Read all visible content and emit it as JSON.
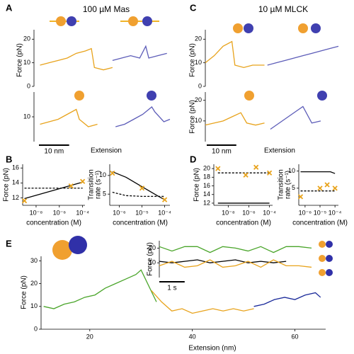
{
  "chart_data": [
    {
      "type": "line",
      "panel_label": "A",
      "title": "100 µM Mas",
      "ylabel": "Force (pN)",
      "xlim": [
        0,
        45
      ],
      "ylim": [
        0,
        24
      ],
      "yticks": [
        0,
        10,
        20
      ],
      "series": [
        {
          "color": "#e8a31c",
          "style": "solid",
          "x": [
            2,
            5,
            8,
            11,
            14,
            17,
            19,
            20,
            23,
            26
          ],
          "values": [
            9,
            10,
            11,
            12,
            14,
            15,
            16,
            8,
            7,
            8
          ]
        },
        {
          "color": "#5c5cb8",
          "style": "solid",
          "x": [
            26,
            29,
            32,
            35,
            37,
            38,
            41,
            44
          ],
          "values": [
            11,
            12,
            13,
            12,
            17,
            12,
            13,
            14
          ]
        }
      ]
    },
    {
      "type": "line",
      "xlabel": "Extension",
      "scalebar": {
        "value": 10,
        "label": "10 nm"
      },
      "xlim": [
        0,
        45
      ],
      "ylim": [
        0,
        20
      ],
      "yticks": [
        10
      ],
      "series": [
        {
          "color": "#e8a31c",
          "style": "solid",
          "x": [
            2,
            5,
            8,
            11,
            14,
            15,
            18,
            21
          ],
          "values": [
            7,
            8,
            9,
            11,
            13,
            9,
            6,
            7
          ]
        },
        {
          "color": "#5c5cb8",
          "style": "solid",
          "x": [
            27,
            30,
            33,
            36,
            39,
            40,
            43,
            45
          ],
          "values": [
            6,
            7,
            9,
            11,
            14,
            12,
            8,
            9
          ]
        }
      ]
    },
    {
      "type": "line",
      "panel_label": "C",
      "title": "10 µM MLCK",
      "ylabel": "Force (pN)",
      "xlim": [
        0,
        45
      ],
      "ylim": [
        0,
        24
      ],
      "yticks": [
        0,
        10,
        20
      ],
      "series": [
        {
          "color": "#e8a31c",
          "style": "solid",
          "x": [
            0,
            3,
            6,
            9,
            10,
            13,
            16,
            20
          ],
          "values": [
            10,
            13,
            17,
            19,
            9,
            8,
            9,
            9
          ]
        },
        {
          "color": "#5c5cb8",
          "style": "solid",
          "x": [
            21,
            24,
            27,
            30,
            33,
            36,
            39,
            42,
            45
          ],
          "values": [
            9,
            10,
            11,
            12,
            13,
            14,
            15,
            16,
            17
          ]
        }
      ]
    },
    {
      "type": "line",
      "ylabel": "Force (pN)",
      "xlabel": "Extension",
      "scalebar": {
        "value": 10,
        "label": "10 nm"
      },
      "xlim": [
        0,
        45
      ],
      "ylim": [
        0,
        24
      ],
      "yticks": [
        10,
        20
      ],
      "series": [
        {
          "color": "#e8a31c",
          "style": "solid",
          "x": [
            0,
            3,
            6,
            9,
            12,
            14,
            17,
            20
          ],
          "values": [
            8,
            9,
            10,
            12,
            14,
            9,
            8,
            9
          ]
        },
        {
          "color": "#5c5cb8",
          "style": "solid",
          "x": [
            22,
            25,
            28,
            31,
            33,
            36,
            39
          ],
          "values": [
            6,
            9,
            12,
            15,
            17,
            9,
            10
          ]
        }
      ]
    },
    {
      "type": "scatter",
      "panel_label": "B",
      "ylabel": "Force (pN)",
      "xlabel": "concentration (M)",
      "xscale": "log",
      "xlim": [
        7e-10,
        0.00016
      ],
      "xticks": [
        {
          "value": 1e-08,
          "label": "10⁻⁸"
        },
        {
          "value": 1e-06,
          "label": "10⁻⁶"
        },
        {
          "value": 0.0001,
          "label": "10⁻⁴"
        }
      ],
      "ylim": [
        11,
        16.5
      ],
      "yticks": [
        12,
        14,
        16
      ],
      "series": [
        {
          "color": "#000000",
          "style": "solid",
          "x": [
            1e-09,
            0.0001
          ],
          "values": [
            11.9,
            14.1
          ]
        },
        {
          "color": "#000000",
          "style": "dashed",
          "x": [
            1e-09,
            0.0001
          ],
          "values": [
            13.3,
            13.3
          ]
        },
        {
          "color": "#e8a31c",
          "style": "cross",
          "x": [
            1e-09,
            1e-05,
            0.0001
          ],
          "values": [
            11.6,
            13.6,
            14.2
          ]
        }
      ]
    },
    {
      "type": "scatter",
      "ylabel": [
        "Transition",
        "rate (s⁻¹)"
      ],
      "xlabel": "concentration (M)",
      "xscale": "log",
      "xlim": [
        3.8e-07,
        0.00017
      ],
      "xticks": [
        {
          "value": 1e-06,
          "label": "10⁻⁶"
        },
        {
          "value": 1e-05,
          "label": "10⁻⁵"
        },
        {
          "value": 0.0001,
          "label": "10⁻⁴"
        }
      ],
      "ylim": [
        2,
        13
      ],
      "yticks": [
        5,
        10
      ],
      "series": [
        {
          "color": "#000000",
          "style": "solid",
          "x": [
            5e-07,
            2e-06,
            1e-05,
            5e-05,
            0.0001
          ],
          "values": [
            11,
            9.5,
            7,
            4.5,
            3.5
          ]
        },
        {
          "color": "#000000",
          "style": "dashed",
          "x": [
            5e-07,
            2e-06,
            1e-05,
            0.0001
          ],
          "values": [
            5.5,
            4.6,
            4.4,
            4.4
          ]
        },
        {
          "color": "#e8a31c",
          "style": "cross",
          "x": [
            5e-07,
            1e-05,
            0.0001
          ],
          "values": [
            10.6,
            6.6,
            3.5
          ]
        }
      ]
    },
    {
      "type": "scatter",
      "panel_label": "D",
      "ylabel": "Force (pN)",
      "xlabel": "concentration (M)",
      "xscale": "log",
      "xlim": [
        4e-10,
        0.0002
      ],
      "xticks": [
        {
          "value": 1e-08,
          "label": "10⁻⁸"
        },
        {
          "value": 1e-06,
          "label": "10⁻⁶"
        },
        {
          "value": 0.0001,
          "label": "10⁻⁴"
        }
      ],
      "ylim": [
        11.5,
        21
      ],
      "yticks": [
        12,
        14,
        16,
        18,
        20
      ],
      "series": [
        {
          "color": "#000000",
          "style": "solid",
          "x": [
            1e-09,
            0.0001
          ],
          "values": [
            12,
            12
          ]
        },
        {
          "color": "#000000",
          "style": "dashed",
          "x": [
            1e-09,
            0.0001
          ],
          "values": [
            19,
            19
          ]
        },
        {
          "color": "#e8a31c",
          "style": "cross",
          "x": [
            1e-09,
            5e-07,
            5e-06,
            0.0001
          ],
          "values": [
            20,
            18.5,
            20.3,
            19
          ]
        }
      ]
    },
    {
      "type": "scatter",
      "ylabel": [
        "Transition",
        "rate (s⁻¹)"
      ],
      "xlabel": "concentration (M)",
      "xscale": "log",
      "xlim": [
        3.8e-07,
        0.00017
      ],
      "xticks": [
        {
          "value": 1e-06,
          "label": "10⁻⁶"
        },
        {
          "value": 1e-05,
          "label": "10⁻⁵"
        },
        {
          "value": 0.0001,
          "label": "10⁻⁴"
        }
      ],
      "ylim": [
        0,
        12
      ],
      "yticks": [
        5,
        10
      ],
      "series": [
        {
          "color": "#000000",
          "style": "solid",
          "x": [
            5e-07,
            5e-05,
            0.0001
          ],
          "values": [
            9.8,
            9.8,
            9.3
          ]
        },
        {
          "color": "#000000",
          "style": "dashed",
          "x": [
            5e-07,
            0.0001
          ],
          "values": [
            4.2,
            4.2
          ]
        },
        {
          "color": "#e8a31c",
          "style": "cross",
          "x": [
            5e-07,
            1e-05,
            3e-05,
            0.0001
          ],
          "values": [
            2.5,
            5,
            6,
            5
          ]
        }
      ]
    },
    {
      "type": "line",
      "panel_label": "E",
      "ylabel": "Force (pN)",
      "xlabel": "Extension (nm)",
      "xlim": [
        10.5,
        66
      ],
      "xticks": [
        20,
        40,
        60
      ],
      "ylim": [
        0,
        32
      ],
      "yticks": [
        0,
        10,
        20,
        30
      ],
      "series": [
        {
          "color": "#4aa52a",
          "style": "solid",
          "x": [
            11,
            13,
            15,
            17,
            19,
            21,
            23,
            25,
            27,
            29,
            30,
            33
          ],
          "values": [
            10,
            9,
            11,
            12,
            14,
            15,
            18,
            20,
            22,
            24,
            26,
            12
          ]
        },
        {
          "color": "#e8a31c",
          "style": "solid",
          "x": [
            32,
            34,
            36,
            38,
            40,
            42,
            44,
            46,
            48,
            50,
            52
          ],
          "values": [
            17,
            12,
            8,
            9,
            7,
            8,
            9,
            8,
            9,
            8,
            9
          ]
        },
        {
          "color": "#1a2a9a",
          "style": "solid",
          "x": [
            52,
            54,
            56,
            58,
            60,
            62,
            64,
            65
          ],
          "values": [
            10,
            11,
            13,
            14,
            13,
            15,
            16,
            14
          ]
        }
      ]
    },
    {
      "type": "line",
      "ylabel": "Force (pN)",
      "scalebar": {
        "value": 1,
        "label": "1 s"
      },
      "xlim": [
        0,
        6
      ],
      "ylim": [
        0,
        25
      ],
      "yticks": [
        10,
        20
      ],
      "series": [
        {
          "color": "#4aa52a",
          "style": "solid",
          "x": [
            0,
            0.5,
            1,
            1.5,
            2,
            2.5,
            3,
            3.5,
            4,
            4.5,
            5,
            5.5,
            6
          ],
          "values": [
            21,
            18,
            21,
            21,
            17,
            21,
            20,
            18,
            21,
            17,
            21,
            21,
            20
          ]
        },
        {
          "color": "#000000",
          "style": "solid",
          "x": [
            0,
            0.5,
            1,
            1.5,
            2,
            2.5,
            3,
            3.5,
            4,
            4.5,
            5
          ],
          "values": [
            11,
            10,
            11,
            12,
            10,
            11,
            12,
            10,
            11,
            10,
            11
          ]
        },
        {
          "color": "#e8a31c",
          "style": "solid",
          "x": [
            0,
            0.5,
            1,
            1.5,
            2,
            2.5,
            3,
            3.5,
            4,
            4.5,
            5,
            5.5,
            6
          ],
          "values": [
            8,
            11,
            7,
            8,
            12,
            7,
            8,
            11,
            7,
            12,
            8,
            8,
            7
          ]
        }
      ]
    }
  ]
}
